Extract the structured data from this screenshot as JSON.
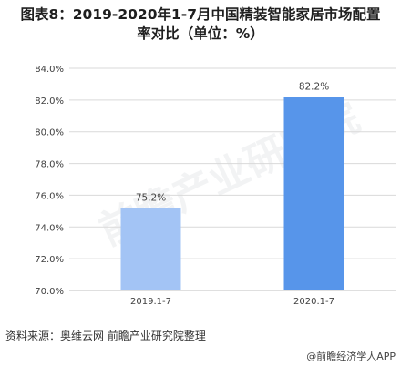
{
  "header": {
    "title_line1": "图表8：2019-2020年1-7月中国精装智能家居市场配置",
    "title_line2": "率对比（单位：%）"
  },
  "watermark": "前瞻产业研究院",
  "chart_data": {
    "type": "bar",
    "categories": [
      "2019.1-7",
      "2020.1-7"
    ],
    "values": [
      75.2,
      82.2
    ],
    "value_labels": [
      "75.2%",
      "82.2%"
    ],
    "ylim": [
      70,
      84
    ],
    "yticks": [
      70,
      72,
      74,
      76,
      78,
      80,
      82,
      84
    ],
    "ytick_labels": [
      "70.0%",
      "72.0%",
      "74.0%",
      "76.0%",
      "78.0%",
      "80.0%",
      "82.0%",
      "84.0%"
    ],
    "bar_colors": [
      "#a3c4f5",
      "#5795ea"
    ],
    "grid": true,
    "legend": "none"
  },
  "footer": {
    "source": "资料来源：奥维云网  前瞻产业研究院整理",
    "brand": "@前瞻经济学人APP"
  }
}
